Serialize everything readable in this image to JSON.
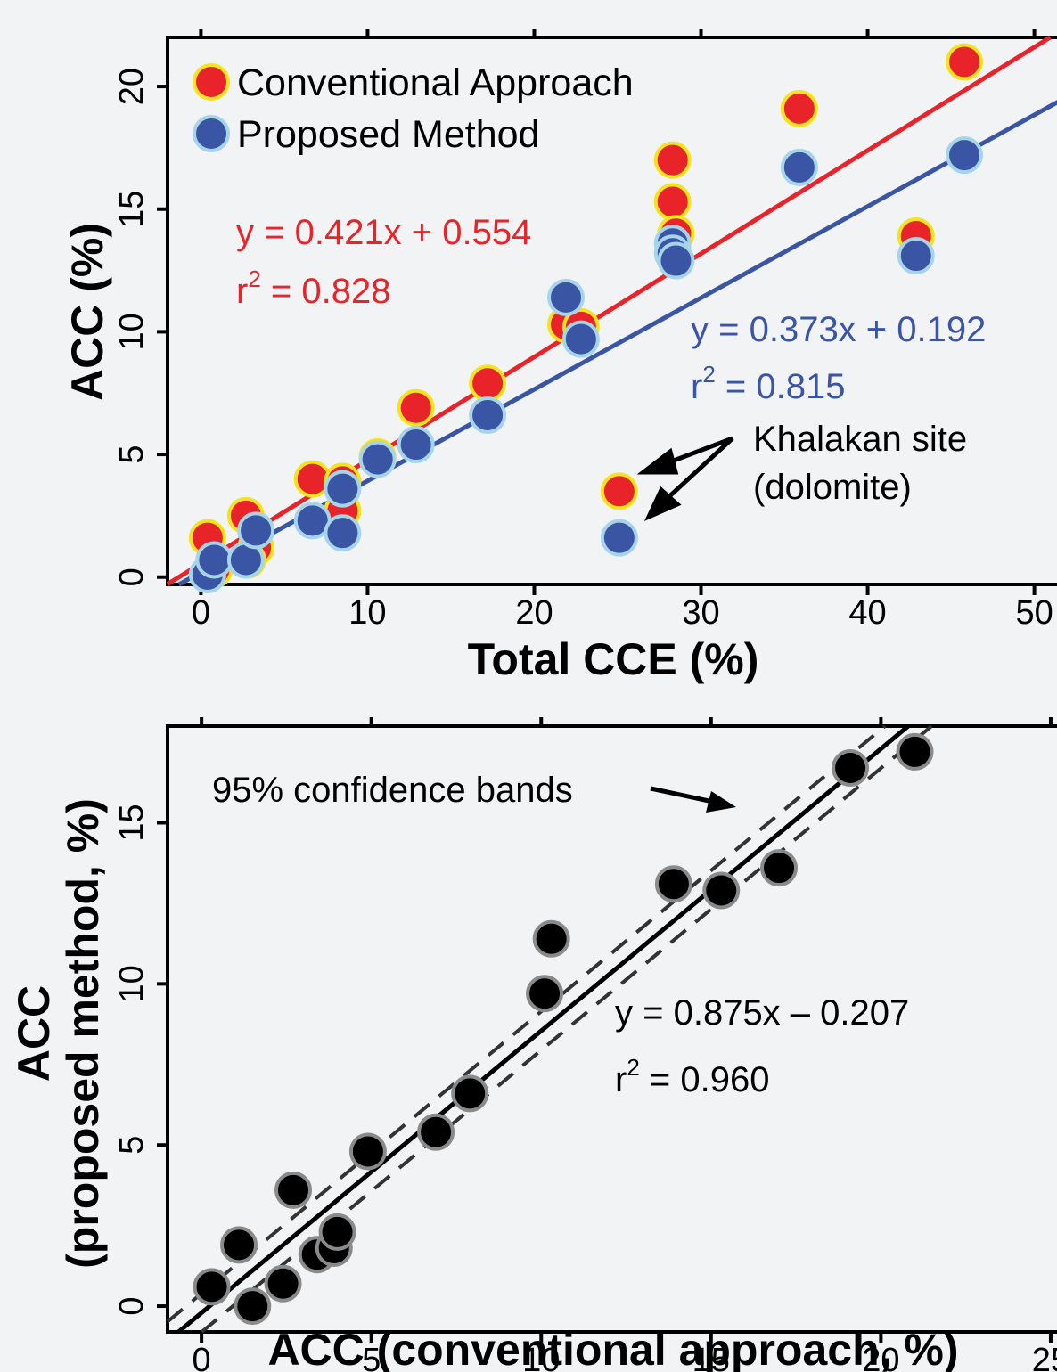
{
  "chart_data": [
    {
      "type": "scatter",
      "xlabel": "Total CCE (%)",
      "ylabel": "ACC (%)",
      "xlim": [
        -2,
        52
      ],
      "ylim": [
        -0.3,
        22
      ],
      "xticks": [
        0,
        10,
        20,
        30,
        40,
        50
      ],
      "yticks": [
        0,
        5,
        10,
        15,
        20
      ],
      "grid": false,
      "legend": {
        "placement": "top-left",
        "entries": [
          "Conventional Approach",
          "Proposed Method"
        ]
      },
      "series": [
        {
          "name": "Conventional Approach",
          "color": "#e8242a",
          "edge": "#f5e31b",
          "x": [
            0.4,
            0.8,
            2.7,
            3.3,
            2.8,
            6.7,
            8.5,
            8.5,
            10.6,
            12.9,
            17.2,
            21.9,
            22.8,
            25.1,
            28.3,
            28.3,
            28.5,
            35.9,
            42.9,
            45.8
          ],
          "y": [
            1.6,
            0.3,
            2.5,
            1.2,
            0.7,
            4.0,
            3.9,
            2.7,
            4.9,
            6.9,
            7.9,
            10.3,
            10.2,
            3.5,
            17.0,
            15.3,
            14.0,
            19.1,
            13.9,
            21.0
          ],
          "fit": {
            "slope": 0.421,
            "intercept": 0.554,
            "equation": "y = 0.421x + 0.554",
            "r2_prefix": "r",
            "r2_exp": "2",
            "r2_value": " = 0.828"
          }
        },
        {
          "name": "Proposed Method",
          "color": "#3a55a4",
          "edge": "#a6d4ea",
          "x": [
            0.4,
            0.8,
            2.7,
            3.3,
            6.7,
            8.5,
            8.5,
            10.6,
            12.9,
            17.2,
            21.9,
            22.8,
            25.1,
            28.3,
            28.3,
            28.5,
            35.9,
            42.9,
            45.8
          ],
          "y": [
            0.1,
            0.7,
            0.7,
            1.9,
            2.3,
            3.6,
            1.8,
            4.8,
            5.4,
            6.6,
            11.4,
            9.7,
            1.6,
            13.6,
            13.2,
            12.9,
            16.7,
            13.1,
            17.2
          ],
          "fit": {
            "slope": 0.373,
            "intercept": 0.192,
            "equation": "y = 0.373x + 0.192",
            "r2_prefix": "r",
            "r2_exp": "2",
            "r2_value": " = 0.815"
          }
        }
      ],
      "annotations": [
        {
          "lines": [
            "Khalakan site",
            "(dolomite)"
          ]
        }
      ]
    },
    {
      "type": "scatter",
      "xlabel": "ACC (conventional approach, %)",
      "ylabel_line1": "ACC",
      "ylabel_line2": "(proposed method, %)",
      "xlim": [
        -1,
        25.5
      ],
      "ylim": [
        -0.8,
        18
      ],
      "xticks": [
        0,
        5,
        10,
        15,
        20,
        25
      ],
      "yticks": [
        0,
        5,
        10,
        15
      ],
      "grid": false,
      "series": [
        {
          "color": "#000000",
          "edge": "#8a8a8a",
          "x": [
            0.3,
            1.1,
            1.5,
            2.4,
            2.7,
            3.4,
            3.9,
            4.0,
            4.9,
            6.9,
            7.9,
            10.1,
            10.3,
            13.9,
            15.3,
            17.0,
            19.1,
            21.0
          ],
          "y": [
            0.6,
            1.9,
            0.0,
            0.7,
            3.6,
            1.6,
            1.8,
            2.3,
            4.8,
            5.4,
            6.6,
            9.7,
            11.4,
            13.1,
            12.9,
            13.6,
            16.7,
            17.2
          ],
          "fit": {
            "slope": 0.875,
            "intercept": -0.207,
            "equation": "y = 0.875x – 0.207",
            "r2_prefix": "r",
            "r2_exp": "2",
            "r2_value": " = 0.960"
          },
          "confidence_band": {
            "level": "95%",
            "offset": 0.6
          }
        }
      ],
      "annotations": [
        {
          "text": "95% confidence bands"
        }
      ]
    }
  ]
}
